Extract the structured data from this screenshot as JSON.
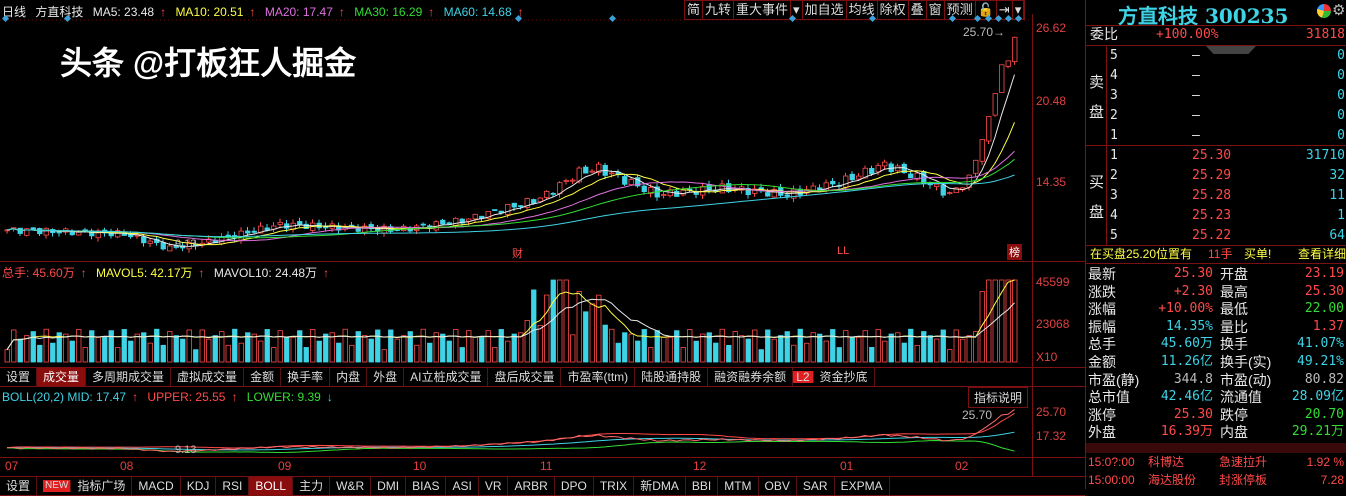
{
  "header": {
    "period": "日线",
    "name": "方直科技",
    "ma5": "MA5: 23.48",
    "ma10": "MA10: 20.51",
    "ma20": "MA20: 17.47",
    "ma30": "MA30: 16.29",
    "ma60": "MA60: 14.68"
  },
  "toolbar": [
    "简",
    "九转",
    "重大事件",
    "▾",
    "加自选",
    "均线",
    "除权",
    "叠",
    "窗",
    "预测",
    "🔓",
    "⇥",
    "▾"
  ],
  "price_axis": [
    "26.62",
    "20.48",
    "14.35"
  ],
  "price_marks": {
    "high": "25.70→",
    "low": "9.13",
    "events": [
      "财",
      "LL",
      "榜"
    ]
  },
  "volume": {
    "total": "总手: 45.60万",
    "mavol5": "MAVOL5: 42.17万",
    "mavol10": "MAVOL10: 24.48万",
    "axis": [
      "45599",
      "23068"
    ],
    "unit": "X10"
  },
  "volume_tabs": [
    "设置",
    "成交量",
    "多周期成交量",
    "虚拟成交量",
    "金额",
    "换手率",
    "内盘",
    "外盘",
    "AI立桩成交量",
    "盘后成交量",
    "市盈率(ttm)",
    "陆股通持股",
    "融资融券余额",
    "L2",
    "资金抄底"
  ],
  "boll": {
    "mid": "BOLL(20,2) MID: 17.47",
    "upper": "UPPER: 25.55",
    "lower": "LOWER: 9.39",
    "axis": [
      "25.70",
      "17.32"
    ],
    "high": "25.70",
    "low": "9.13",
    "explain": "指标说明"
  },
  "months": [
    "07",
    "08",
    "09",
    "10",
    "11",
    "12",
    "01",
    "02"
  ],
  "indicator_tabs": [
    "设置",
    "NEW",
    "指标广场",
    "MACD",
    "KDJ",
    "RSI",
    "BOLL",
    "主力",
    "W&R",
    "DMI",
    "BIAS",
    "ASI",
    "VR",
    "ARBR",
    "DPO",
    "TRIX",
    "新DMA",
    "BBI",
    "MTM",
    "OBV",
    "SAR",
    "EXPMA"
  ],
  "quote": {
    "title": "方直科技 300235",
    "weibi_label": "委比",
    "weibi": "+100.00%",
    "weicha": "31818",
    "sell_label": "卖盘",
    "buy_label": "买盘",
    "sell": [
      {
        "n": "5",
        "p": "—",
        "v": "0"
      },
      {
        "n": "4",
        "p": "—",
        "v": "0"
      },
      {
        "n": "3",
        "p": "—",
        "v": "0"
      },
      {
        "n": "2",
        "p": "—",
        "v": "0"
      },
      {
        "n": "1",
        "p": "—",
        "v": "0"
      }
    ],
    "buy": [
      {
        "n": "1",
        "p": "25.30",
        "v": "31710"
      },
      {
        "n": "2",
        "p": "25.29",
        "v": "32"
      },
      {
        "n": "3",
        "p": "25.28",
        "v": "11"
      },
      {
        "n": "4",
        "p": "25.23",
        "v": "1"
      },
      {
        "n": "5",
        "p": "25.22",
        "v": "64"
      }
    ],
    "notice": "在买盘25.20位置有",
    "notice_qty": "11手",
    "notice_tag": "买单!",
    "detail": "查看详细",
    "stats": [
      [
        "最新",
        "25.30",
        "开盘",
        "23.19"
      ],
      [
        "涨跌",
        "+2.30",
        "最高",
        "25.30"
      ],
      [
        "涨幅",
        "+10.00%",
        "最低",
        "22.00"
      ],
      [
        "振幅",
        "14.35%",
        "量比",
        "1.37"
      ],
      [
        "总手",
        "45.60万",
        "换手",
        "41.07%"
      ],
      [
        "金额",
        "11.26亿",
        "换手(实)",
        "49.21%"
      ],
      [
        "市盈(静)",
        "344.8",
        "市盈(动)",
        "80.82"
      ],
      [
        "总市值",
        "42.46亿",
        "流通值",
        "28.09亿"
      ],
      [
        "涨停",
        "25.30",
        "跌停",
        "20.70"
      ],
      [
        "外盘",
        "16.39万",
        "内盘",
        "29.21万"
      ]
    ],
    "alerts": [
      [
        "15:0?:00",
        "科博达",
        "急速拉升",
        "1.92 %"
      ],
      [
        "15:00:00",
        "海达股份",
        "封涨停板",
        "7.28"
      ]
    ]
  },
  "watermark": "头条 @打板狂人掘金",
  "colors": {
    "up": "#ff4a4a",
    "down": "#3fd3e6",
    "ma5": "#e8e8e8",
    "ma10": "#ffff44",
    "ma20": "#e070e0",
    "ma30": "#33dd33",
    "ma60": "#3fd3e6",
    "border": "#7a1010"
  }
}
